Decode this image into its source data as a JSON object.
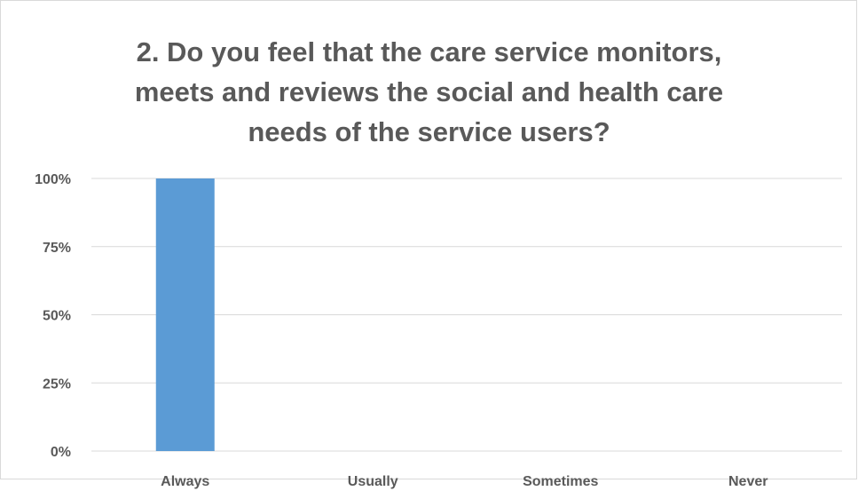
{
  "chart_data": {
    "type": "bar",
    "title_lines": [
      "2. Do you feel that the care service monitors,",
      "meets and reviews the social and health care",
      "needs of the service users?"
    ],
    "categories": [
      "Always",
      "Usually",
      "Sometimes",
      "Never"
    ],
    "values": [
      100,
      0,
      0,
      0
    ],
    "ylim": [
      0,
      100
    ],
    "yticks": [
      0,
      25,
      50,
      75,
      100
    ],
    "ytick_labels": [
      "0%",
      "25%",
      "50%",
      "75%",
      "100%"
    ],
    "bar_color": "#5b9bd5",
    "grid": true,
    "legend": "none",
    "xlabel": "",
    "ylabel": ""
  }
}
